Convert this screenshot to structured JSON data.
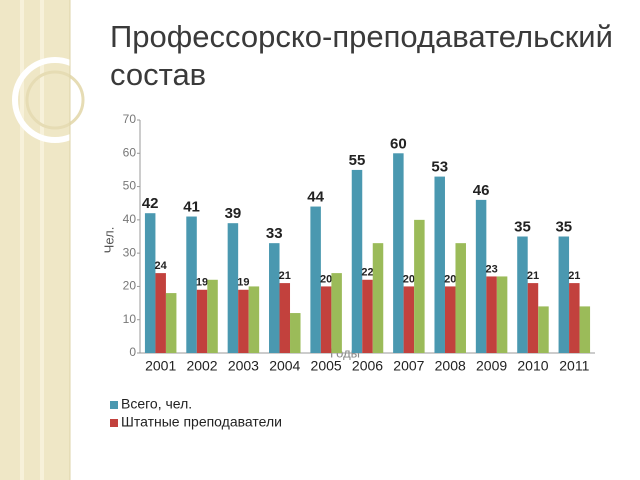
{
  "chart_data": {
    "type": "bar",
    "title": "Профессорско-преподавательский состав",
    "y_label": "Чел.",
    "x_label": "Годы",
    "categories": [
      "2001",
      "2002",
      "2003",
      "2004",
      "2005",
      "2006",
      "2007",
      "2008",
      "2009",
      "2010",
      "2011"
    ],
    "series": [
      {
        "name": "Всего, чел.",
        "color": "#4a98b0",
        "data_labels": true,
        "values": [
          42,
          41,
          39,
          33,
          44,
          55,
          60,
          53,
          46,
          35,
          35
        ]
      },
      {
        "name": "Штатные преподаватели",
        "color": "#c2413d",
        "data_labels": true,
        "values": [
          24,
          19,
          19,
          21,
          20,
          22,
          20,
          20,
          23,
          21,
          21
        ]
      },
      {
        "color": "#9bbb59",
        "data_labels": false,
        "values": [
          18,
          22,
          20,
          12,
          24,
          33,
          40,
          33,
          23,
          14,
          14
        ]
      }
    ],
    "ylim": [
      0,
      70
    ],
    "yticks": [
      0,
      10,
      20,
      30,
      40,
      50,
      60,
      70
    ],
    "grid": false
  }
}
